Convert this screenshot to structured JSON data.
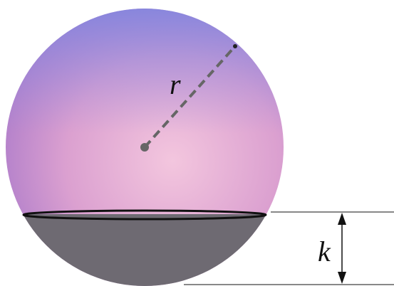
{
  "labels": {
    "radius": "r",
    "height": "k"
  }
}
